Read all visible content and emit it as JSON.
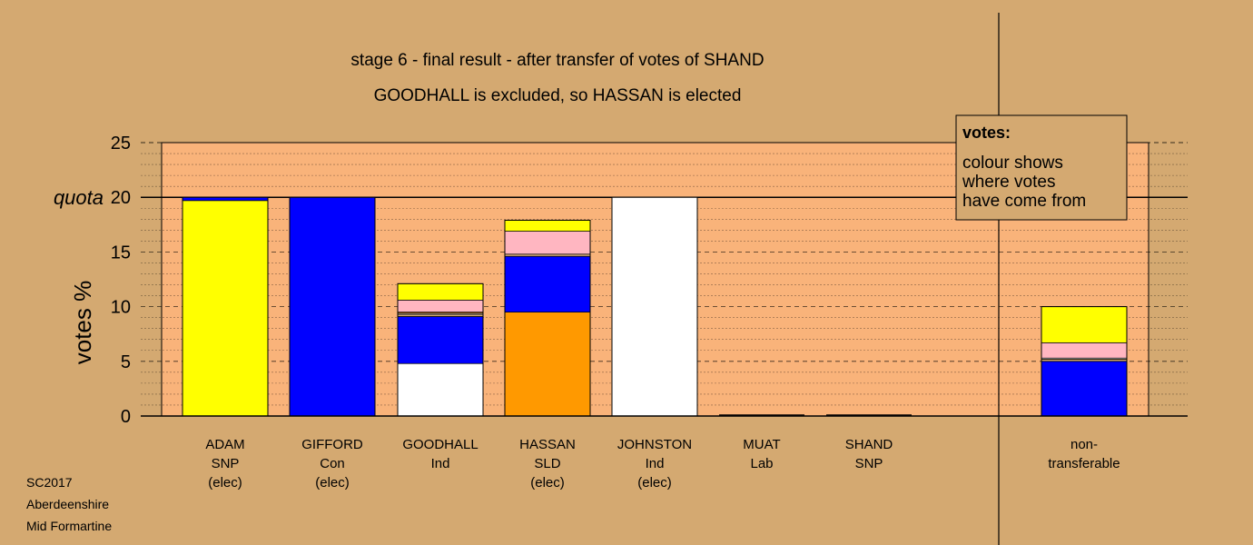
{
  "chart_data": {
    "type": "bar",
    "stacked": true,
    "title": "stage 6 - final result - after transfer of votes of SHAND",
    "subtitle": "GOODHALL is excluded, so HASSAN is elected",
    "ylabel": "votes %",
    "ylim": [
      0,
      25
    ],
    "yticks": [
      0,
      5,
      10,
      15,
      20,
      25
    ],
    "quota": {
      "value": 20,
      "label": "quota"
    },
    "grid": true,
    "legend": {
      "heading": "votes:",
      "lines": [
        "colour shows",
        "where votes",
        "have come from"
      ],
      "placement": "top-right"
    },
    "categories": [
      {
        "lines": [
          "ADAM",
          "SNP",
          "(elec)"
        ]
      },
      {
        "lines": [
          "GIFFORD",
          "Con",
          "(elec)"
        ]
      },
      {
        "lines": [
          "GOODHALL",
          "Ind"
        ]
      },
      {
        "lines": [
          "HASSAN",
          "SLD",
          "(elec)"
        ]
      },
      {
        "lines": [
          "JOHNSTON",
          "Ind",
          "(elec)"
        ]
      },
      {
        "lines": [
          "MUAT",
          "Lab"
        ]
      },
      {
        "lines": [
          "SHAND",
          "SNP"
        ]
      },
      {
        "lines": [
          "non-",
          "transferable"
        ]
      }
    ],
    "bars": [
      [
        {
          "color": "#ffff00",
          "value": 19.7
        },
        {
          "color": "#0000ff",
          "value": 0.3
        }
      ],
      [
        {
          "color": "#0000ff",
          "value": 20.0
        }
      ],
      [
        {
          "color": "#ffffff",
          "value": 4.8
        },
        {
          "color": "#0000ff",
          "value": 4.3
        },
        {
          "color": "#d4a971",
          "value": 0.2
        },
        {
          "color": "#ffffff",
          "value": 0.1
        },
        {
          "color": "#ff8c00",
          "value": 0.1
        },
        {
          "color": "#ffb6c1",
          "value": 1.1
        },
        {
          "color": "#ffff00",
          "value": 1.5
        }
      ],
      [
        {
          "color": "#ff9900",
          "value": 9.5
        },
        {
          "color": "#0000ff",
          "value": 5.1
        },
        {
          "color": "#d4a971",
          "value": 0.2
        },
        {
          "color": "#ffb6c1",
          "value": 2.1
        },
        {
          "color": "#ffff00",
          "value": 1.0
        }
      ],
      [
        {
          "color": "#ffffff",
          "value": 20.0
        }
      ],
      [],
      [],
      [
        {
          "color": "#0000ff",
          "value": 5.0
        },
        {
          "color": "#d4a971",
          "value": 0.2
        },
        {
          "color": "#ffffff",
          "value": 0.1
        },
        {
          "color": "#ffb6c1",
          "value": 1.4
        },
        {
          "color": "#ffff00",
          "value": 3.3
        }
      ]
    ],
    "colors": {
      "background": "#d4a971",
      "plot_background": "#f9b37a",
      "legend_background": "#d4a971"
    }
  },
  "footer": {
    "lines": [
      "SC2017",
      "Aberdeenshire",
      "Mid Formartine"
    ]
  }
}
